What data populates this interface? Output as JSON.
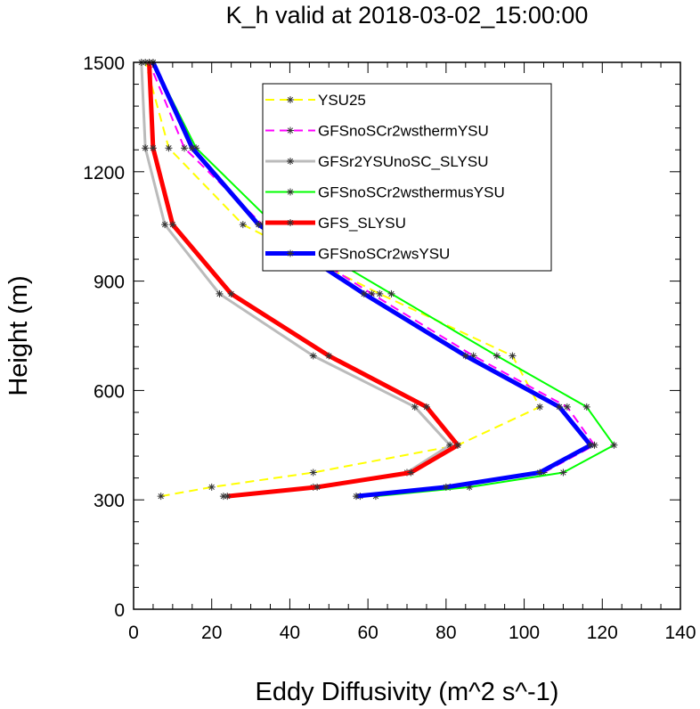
{
  "chart_data": {
    "type": "line",
    "title": "K_h valid at 2018-03-02_15:00:00",
    "xlabel": "Eddy Diffusivity (m^2 s^-1)",
    "ylabel": "Height (m)",
    "xlim": [
      0,
      140
    ],
    "ylim": [
      0,
      1500
    ],
    "xticks": [
      0,
      20,
      40,
      60,
      80,
      100,
      120,
      140
    ],
    "yticks": [
      0,
      300,
      600,
      900,
      1200,
      1500
    ],
    "grid": false,
    "legend_position": "upper-middle",
    "series": [
      {
        "name": "YSU25",
        "color": "#ffff00",
        "dash": "dashed",
        "line_width": 2,
        "x": [
          7,
          20,
          46,
          83,
          104,
          97,
          63,
          28,
          9,
          3
        ],
        "y": [
          310,
          335,
          375,
          450,
          555,
          695,
          865,
          1055,
          1265,
          1500
        ]
      },
      {
        "name": "GFSnoSCr2wsthermYSU",
        "color": "#ff00ff",
        "dash": "dashed",
        "line_width": 2,
        "x": [
          58,
          81,
          105,
          118,
          111,
          87,
          61,
          33,
          13,
          4
        ],
        "y": [
          310,
          335,
          375,
          450,
          555,
          695,
          865,
          1055,
          1265,
          1500
        ]
      },
      {
        "name": "GFSr2YSUnoSC_SLYSU",
        "color": "#bbbbbb",
        "dash": "solid",
        "line_width": 3,
        "x": [
          23,
          46,
          70,
          81,
          72,
          46,
          22,
          8,
          3,
          2
        ],
        "y": [
          310,
          335,
          375,
          450,
          555,
          695,
          865,
          1055,
          1265,
          1500
        ]
      },
      {
        "name": "GFSnoSCr2wsthermusYSU",
        "color": "#00ff00",
        "dash": "solid",
        "line_width": 2,
        "x": [
          62,
          86,
          110,
          123,
          116,
          93,
          66,
          36,
          16,
          5
        ],
        "y": [
          310,
          335,
          375,
          450,
          555,
          695,
          865,
          1055,
          1265,
          1500
        ]
      },
      {
        "name": "GFS_SLYSU",
        "color": "#ff0000",
        "dash": "solid",
        "line_width": 5,
        "x": [
          24,
          47,
          71,
          83,
          75,
          50,
          25,
          10,
          5,
          4
        ],
        "y": [
          310,
          335,
          375,
          450,
          555,
          695,
          865,
          1055,
          1265,
          1500
        ]
      },
      {
        "name": "GFSnoSCr2wsYSU",
        "color": "#0000ff",
        "dash": "solid",
        "line_width": 5,
        "x": [
          57,
          80,
          104,
          117,
          109,
          85,
          59,
          32,
          15,
          5
        ],
        "y": [
          310,
          335,
          375,
          450,
          555,
          695,
          865,
          1055,
          1265,
          1500
        ]
      }
    ]
  }
}
